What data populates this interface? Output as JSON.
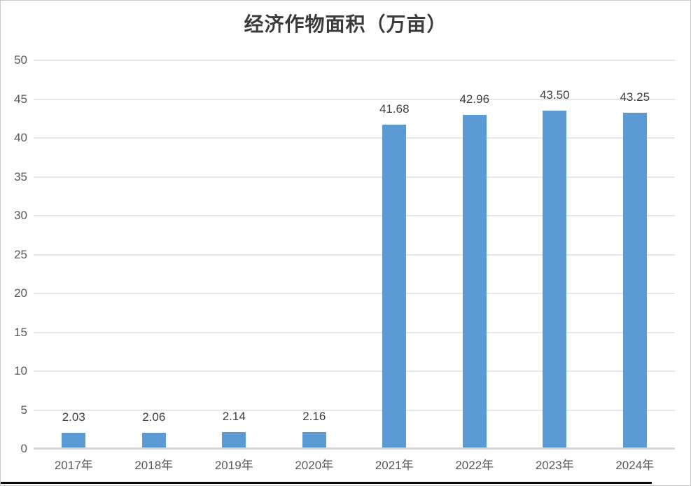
{
  "chart_data": {
    "type": "bar",
    "title": "经济作物面积（万亩）",
    "categories": [
      "2017年",
      "2018年",
      "2019年",
      "2020年",
      "2021年",
      "2022年",
      "2023年",
      "2024年"
    ],
    "values": [
      2.03,
      2.06,
      2.14,
      2.16,
      41.68,
      42.96,
      43.5,
      43.25
    ],
    "data_labels": [
      "2.03",
      "2.06",
      "2.14",
      "2.16",
      "41.68",
      "42.96",
      "43.50",
      "43.25"
    ],
    "xlabel": "",
    "ylabel": "",
    "ylim": [
      0,
      50
    ],
    "ytick_step": 5,
    "ytick_labels": [
      "0",
      "5",
      "10",
      "15",
      "20",
      "25",
      "30",
      "35",
      "40",
      "45",
      "50"
    ],
    "grid": true,
    "legend": "none",
    "colors": {
      "bar": "#5B9BD5",
      "gridline": "#E7E7E7",
      "axis_line": "#D5D5D5",
      "axis_labels": "#595959",
      "data_labels": "#3F3F3F",
      "title": "#3B3B3B",
      "background": "#FFFFFF"
    }
  }
}
